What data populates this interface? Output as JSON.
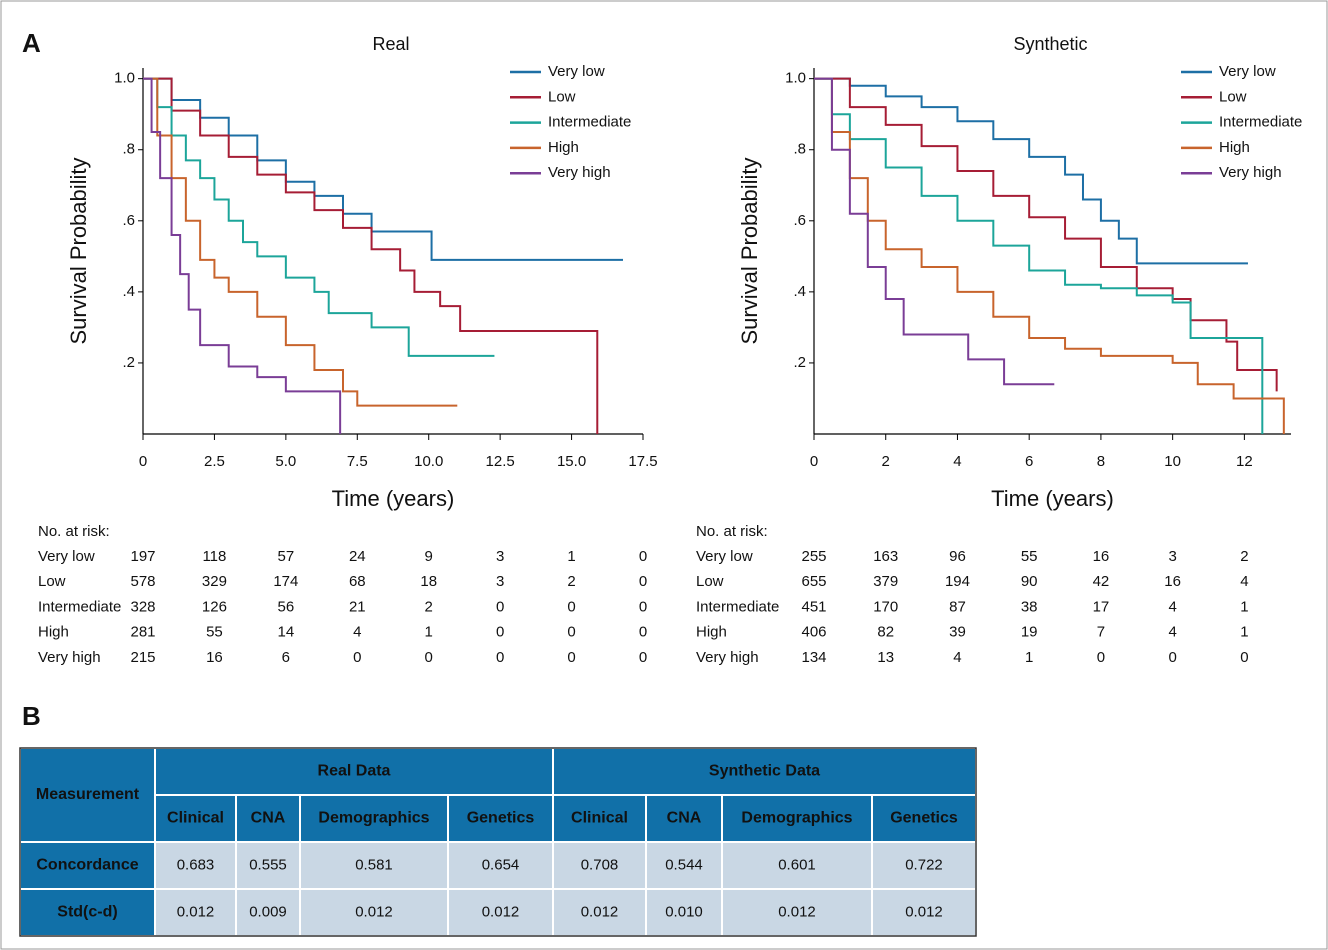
{
  "panel_labels": {
    "a": "A",
    "b": "B"
  },
  "chart_data": [
    {
      "type": "line",
      "drawstyle": "steps-post",
      "title": "Real",
      "x_label": "Time (years)",
      "y_label": "Survival Probability",
      "xlim": [
        0,
        17.5
      ],
      "xticks": [
        0,
        2.5,
        {
          "value": 5,
          "label": "5.0"
        },
        7.5,
        {
          "value": 10,
          "label": "10.0"
        },
        12.5,
        {
          "value": 15,
          "label": "15.0"
        },
        17.5
      ],
      "ylim": [
        0,
        1.03
      ],
      "yticks": [
        {
          "value": 0.2,
          "label": ".2"
        },
        {
          "value": 0.4,
          "label": ".4"
        },
        {
          "value": 0.6,
          "label": ".6"
        },
        {
          "value": 0.8,
          "label": ".8"
        },
        {
          "value": 1,
          "label": "1.0"
        }
      ],
      "legend": "upper right",
      "series": [
        {
          "name": "Very low",
          "color": "#1d6fa5",
          "x": [
            0,
            1,
            2,
            3,
            4,
            5,
            6,
            7,
            8,
            10.1,
            16.8
          ],
          "values": [
            1,
            0.94,
            0.89,
            0.84,
            0.77,
            0.71,
            0.67,
            0.62,
            0.57,
            0.49,
            0.49
          ]
        },
        {
          "name": "Low",
          "color": "#a61d35",
          "x": [
            0,
            1,
            2,
            3,
            4,
            5,
            6,
            7,
            8,
            9,
            9.5,
            10.4,
            11.1,
            15.9
          ],
          "values": [
            1,
            0.91,
            0.84,
            0.78,
            0.73,
            0.68,
            0.63,
            0.58,
            0.52,
            0.46,
            0.4,
            0.36,
            0.29,
            0
          ]
        },
        {
          "name": "Intermediate",
          "color": "#1ca59a",
          "x": [
            0,
            0.5,
            1,
            1.5,
            2,
            2.5,
            3,
            3.5,
            4,
            5,
            6,
            6.5,
            8,
            9.3,
            12.3
          ],
          "values": [
            1,
            0.92,
            0.84,
            0.77,
            0.72,
            0.66,
            0.6,
            0.54,
            0.5,
            0.44,
            0.4,
            0.34,
            0.3,
            0.22,
            0.22
          ]
        },
        {
          "name": "High",
          "color": "#c8642c",
          "x": [
            0,
            0.5,
            1,
            1.5,
            2,
            2.5,
            3,
            4,
            5,
            6,
            7,
            7.5,
            11
          ],
          "values": [
            1,
            0.84,
            0.72,
            0.6,
            0.49,
            0.44,
            0.4,
            0.33,
            0.25,
            0.18,
            0.12,
            0.08,
            0.08
          ]
        },
        {
          "name": "Very high",
          "color": "#7a3d96",
          "x": [
            0,
            0.3,
            0.6,
            1,
            1.3,
            1.6,
            2,
            3,
            4,
            5,
            6.9
          ],
          "values": [
            1,
            0.85,
            0.72,
            0.56,
            0.45,
            0.35,
            0.25,
            0.19,
            0.16,
            0.12,
            0
          ]
        }
      ],
      "risk_table": {
        "title": "No. at risk:",
        "rows": [
          {
            "name": "Very low",
            "values": [
              197,
              118,
              57,
              24,
              9,
              3,
              1,
              0
            ]
          },
          {
            "name": "Low",
            "values": [
              578,
              329,
              174,
              68,
              18,
              3,
              2,
              0
            ]
          },
          {
            "name": "Intermediate",
            "values": [
              328,
              126,
              56,
              21,
              2,
              0,
              0,
              0
            ]
          },
          {
            "name": "High",
            "values": [
              281,
              55,
              14,
              4,
              1,
              0,
              0,
              0
            ]
          },
          {
            "name": "Very high",
            "values": [
              215,
              16,
              6,
              0,
              0,
              0,
              0,
              0
            ]
          }
        ]
      }
    },
    {
      "type": "line",
      "drawstyle": "steps-post",
      "title": "Synthetic",
      "x_label": "Time (years)",
      "y_label": "Survival Probability",
      "xlim": [
        0,
        13.3
      ],
      "xticks": [
        0,
        2,
        4,
        6,
        8,
        10,
        12
      ],
      "ylim": [
        0,
        1.03
      ],
      "yticks": [
        {
          "value": 0.2,
          "label": ".2"
        },
        {
          "value": 0.4,
          "label": ".4"
        },
        {
          "value": 0.6,
          "label": ".6"
        },
        {
          "value": 0.8,
          "label": ".8"
        },
        {
          "value": 1,
          "label": "1.0"
        }
      ],
      "legend": "upper right",
      "series": [
        {
          "name": "Very low",
          "color": "#1d6fa5",
          "x": [
            0,
            1,
            2,
            3,
            4,
            5,
            6,
            7,
            7.5,
            8,
            8.5,
            9,
            12.1
          ],
          "values": [
            1,
            0.98,
            0.95,
            0.92,
            0.88,
            0.83,
            0.78,
            0.73,
            0.66,
            0.6,
            0.55,
            0.48,
            0.48
          ]
        },
        {
          "name": "Low",
          "color": "#a61d35",
          "x": [
            0,
            1,
            2,
            3,
            4,
            5,
            6,
            7,
            8,
            9,
            10,
            10.5,
            11.5,
            11.8,
            12.9
          ],
          "values": [
            1,
            0.92,
            0.87,
            0.81,
            0.74,
            0.67,
            0.61,
            0.55,
            0.47,
            0.41,
            0.38,
            0.32,
            0.26,
            0.18,
            0.12
          ]
        },
        {
          "name": "Intermediate",
          "color": "#1ca59a",
          "x": [
            0,
            0.5,
            1,
            2,
            3,
            4,
            5,
            6,
            7,
            8,
            9,
            10,
            10.5,
            12.5
          ],
          "values": [
            1,
            0.9,
            0.83,
            0.75,
            0.67,
            0.6,
            0.53,
            0.46,
            0.42,
            0.41,
            0.39,
            0.37,
            0.27,
            0
          ]
        },
        {
          "name": "High",
          "color": "#c8642c",
          "x": [
            0,
            0.5,
            1,
            1.5,
            2,
            3,
            4,
            5,
            6,
            7,
            8,
            10,
            10.7,
            11.7,
            13.1
          ],
          "values": [
            1,
            0.85,
            0.72,
            0.6,
            0.52,
            0.47,
            0.4,
            0.33,
            0.27,
            0.24,
            0.22,
            0.2,
            0.14,
            0.1,
            0
          ]
        },
        {
          "name": "Very high",
          "color": "#7a3d96",
          "x": [
            0,
            0.5,
            1,
            1.5,
            2,
            2.5,
            4.3,
            5.3,
            6.7
          ],
          "values": [
            1,
            0.8,
            0.62,
            0.47,
            0.38,
            0.28,
            0.21,
            0.14,
            0.14
          ]
        }
      ],
      "risk_table": {
        "title": "No. at risk:",
        "rows": [
          {
            "name": "Very low",
            "values": [
              255,
              163,
              96,
              55,
              16,
              3,
              2
            ]
          },
          {
            "name": "Low",
            "values": [
              655,
              379,
              194,
              90,
              42,
              16,
              4
            ]
          },
          {
            "name": "Intermediate",
            "values": [
              451,
              170,
              87,
              38,
              17,
              4,
              1
            ]
          },
          {
            "name": "High",
            "values": [
              406,
              82,
              39,
              19,
              7,
              4,
              1
            ]
          },
          {
            "name": "Very high",
            "values": [
              134,
              13,
              4,
              1,
              0,
              0,
              0
            ]
          }
        ]
      }
    }
  ],
  "table": {
    "header": "Measurement",
    "groups": [
      "Real Data",
      "Synthetic Data"
    ],
    "columns": [
      "Clinical",
      "CNA",
      "Demographics",
      "Genetics",
      "Clinical",
      "CNA",
      "Demographics",
      "Genetics"
    ],
    "rows": [
      {
        "name": "Concordance",
        "values": [
          "0.683",
          "0.555",
          "0.581",
          "0.654",
          "0.708",
          "0.544",
          "0.601",
          "0.722"
        ]
      },
      {
        "name": "Std(c-d)",
        "values": [
          "0.012",
          "0.009",
          "0.012",
          "0.012",
          "0.012",
          "0.010",
          "0.012",
          "0.012"
        ]
      }
    ]
  }
}
